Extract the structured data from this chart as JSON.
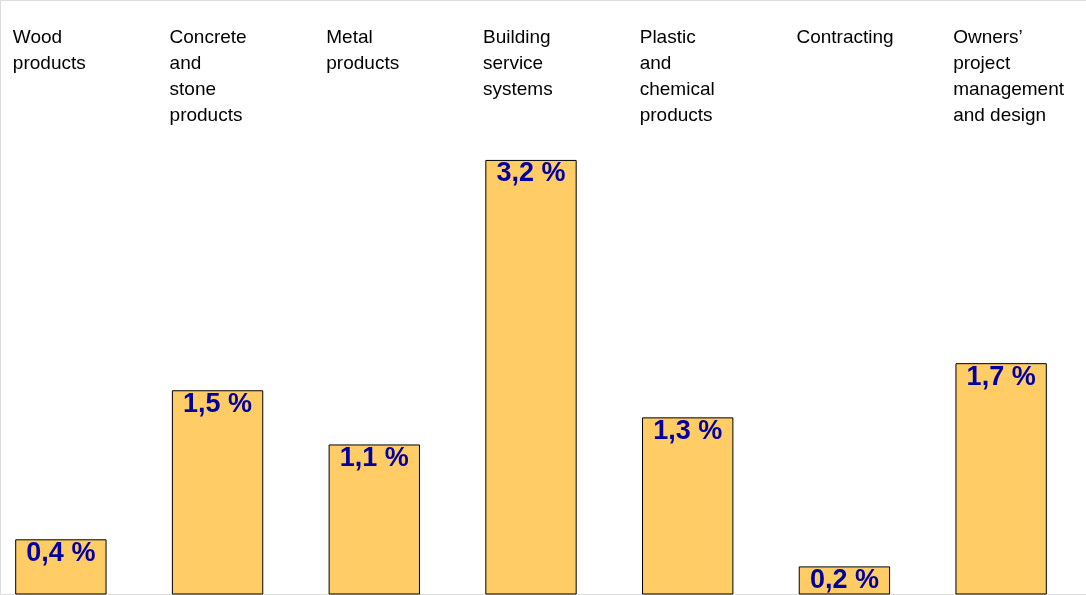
{
  "chart_data": {
    "type": "bar",
    "categories": [
      "Wood\nproducts",
      "Concrete\nand\nstone\nproducts",
      "Metal\nproducts",
      "Building\nservice\nsystems",
      "Plastic\nand\nchemical\nproducts",
      "Contracting",
      "Owners’\nproject\nmanagement\nand design"
    ],
    "values": [
      0.4,
      1.5,
      1.1,
      3.2,
      1.3,
      0.2,
      1.7
    ],
    "value_labels": [
      "0,4 %",
      "1,5 %",
      "1,1 %",
      "3,2 %",
      "1,3 %",
      "0,2 %",
      "1,7 %"
    ],
    "color": "#ffcc66"
  }
}
